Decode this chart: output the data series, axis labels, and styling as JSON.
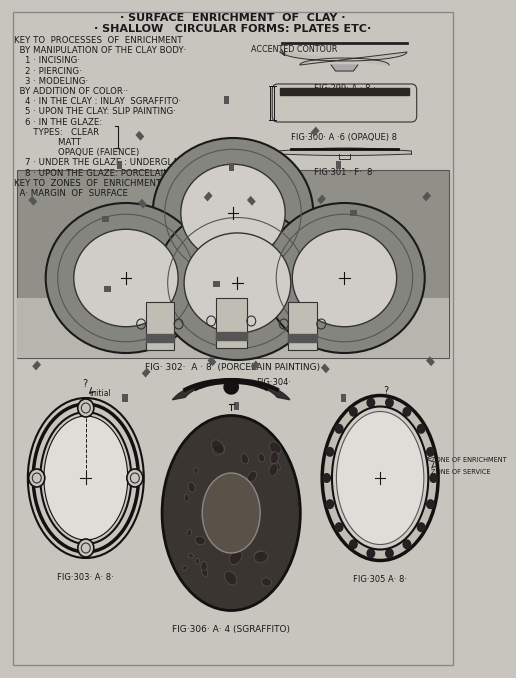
{
  "title1": "· SURFACE  ENRICHMENT  OF  CLAY ·",
  "title2": "· SHALLOW   CIRCULAR FORMS: PLATES ETC·",
  "bg_color": "#c8c5be",
  "text_color": "#1a1a1a",
  "key_lines": [
    "KEY TO  PROCESSES  OF  ENRICHMENT",
    "  BY MANIPULATION OF THE CLAY BODY·",
    "    1 · INCISING·",
    "    2 · PIERCING·",
    "    3 · MODELING·",
    "  BY ADDITION OF COLOR··",
    "    4 · IN THE CLAY : INLAY  SGRAFFITO·",
    "    5 · UPON THE CLAY: SLIP PAINTING·",
    "    6 · IN THE GLAZE:",
    "       TYPES:   CLEAR",
    "                MATT",
    "                OPAQUE (FAIENCE)",
    "    7 · UNDER THE GLAZE : UNDERGLAZE PAINTING",
    "    8 · UPON THE GLAZE: PORCELAIN PAINTING",
    "KEY TO  ZONES  OF  ENRICHMENT",
    "  A· MARGIN  OF  SURFACE"
  ],
  "fig299_label": "FIG·299· A · 8 ·",
  "fig300_label": "FIG·300· A ·6 (OPAQUE) 8",
  "fig301_label": "FIG·301 · F·  8·",
  "fig302_label": "FIG· 302·  A · 8  (PORCELAIN PAINTING)",
  "fig303_label": "FIG·303· A· 8·",
  "fig304_label": "FIG·304·",
  "fig305_label": "FIG·305 A· 8·",
  "fig306_label": "FIG·306· A· 4 (SGRAFFITO)",
  "accented_contour": "ACCENTED CONTOUR",
  "initial_label": "initial",
  "zone_enrichment": "ZONE OF ENRICHMENT",
  "zone_service": "ZONE OF SERVICE",
  "photo_bg": "#787870",
  "photo_dark": "#484840"
}
